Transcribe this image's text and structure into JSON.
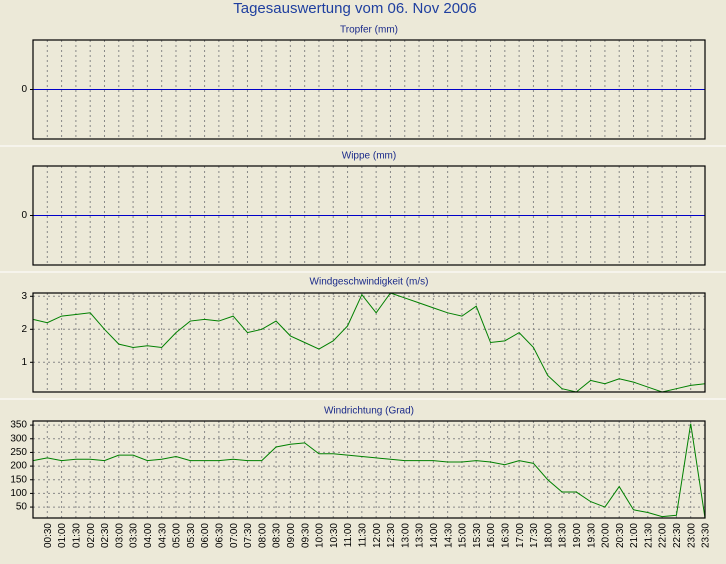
{
  "title": "Tagesauswertung vom 06. Nov 2006",
  "chart_data": [
    {
      "type": "line",
      "title": "Tropfer (mm)",
      "color": "#0000c8",
      "grid": true,
      "ylim": [
        -1,
        1
      ],
      "yticks": [
        0
      ],
      "values": [
        0,
        0,
        0,
        0,
        0,
        0,
        0,
        0,
        0,
        0,
        0,
        0,
        0,
        0,
        0,
        0,
        0,
        0,
        0,
        0,
        0,
        0,
        0,
        0,
        0,
        0,
        0,
        0,
        0,
        0,
        0,
        0,
        0,
        0,
        0,
        0,
        0,
        0,
        0,
        0,
        0,
        0,
        0,
        0,
        0,
        0,
        0,
        0
      ]
    },
    {
      "type": "line",
      "title": "Wippe (mm)",
      "color": "#0000c8",
      "grid": true,
      "ylim": [
        -1,
        1
      ],
      "yticks": [
        0
      ],
      "values": [
        0,
        0,
        0,
        0,
        0,
        0,
        0,
        0,
        0,
        0,
        0,
        0,
        0,
        0,
        0,
        0,
        0,
        0,
        0,
        0,
        0,
        0,
        0,
        0,
        0,
        0,
        0,
        0,
        0,
        0,
        0,
        0,
        0,
        0,
        0,
        0,
        0,
        0,
        0,
        0,
        0,
        0,
        0,
        0,
        0,
        0,
        0,
        0
      ]
    },
    {
      "type": "line",
      "title": "Windgeschwindigkeit (m/s)",
      "color": "#008000",
      "grid": true,
      "ylim": [
        0.1,
        3.1
      ],
      "yticks": [
        1,
        2,
        3
      ],
      "values": [
        2.3,
        2.2,
        2.4,
        2.45,
        2.5,
        2.0,
        1.55,
        1.45,
        1.5,
        1.45,
        1.9,
        2.25,
        2.3,
        2.25,
        2.4,
        1.9,
        2.0,
        2.25,
        1.8,
        1.6,
        1.4,
        1.65,
        2.1,
        3.05,
        2.5,
        3.1,
        2.95,
        2.8,
        2.65,
        2.5,
        2.4,
        2.7,
        1.6,
        1.65,
        1.9,
        1.45,
        0.6,
        0.2,
        0.1,
        0.45,
        0.35,
        0.5,
        0.4,
        0.25,
        0.1,
        0.2,
        0.3,
        0.35
      ]
    },
    {
      "type": "line",
      "title": "Windrichtung (Grad)",
      "color": "#008000",
      "grid": true,
      "ylim": [
        10,
        365
      ],
      "yticks": [
        50,
        100,
        150,
        200,
        250,
        300,
        350
      ],
      "categories": [
        null,
        "00:30",
        "01:00",
        "01:30",
        "02:00",
        "02:30",
        "03:00",
        "03:30",
        "04:00",
        "04:30",
        "05:00",
        "05:30",
        "06:00",
        "06:30",
        "07:00",
        "07:30",
        "08:00",
        "08:30",
        "09:00",
        "09:30",
        "10:00",
        "10:30",
        "11:00",
        "11:30",
        "12:00",
        "12:30",
        "13:00",
        "13:30",
        "14:00",
        "14:30",
        "15:00",
        "15:30",
        "16:00",
        "16:30",
        "17:00",
        "17:30",
        "18:00",
        "18:30",
        "19:00",
        "19:30",
        "20:00",
        "20:30",
        "21:00",
        "21:30",
        "22:00",
        "22:30",
        "23:00",
        "23:30"
      ],
      "values": [
        220,
        230,
        220,
        225,
        225,
        220,
        240,
        240,
        220,
        225,
        235,
        220,
        220,
        220,
        225,
        220,
        220,
        270,
        280,
        285,
        245,
        245,
        240,
        235,
        230,
        225,
        220,
        220,
        220,
        215,
        215,
        220,
        215,
        205,
        220,
        210,
        150,
        105,
        105,
        70,
        50,
        125,
        40,
        30,
        15,
        20,
        355,
        10
      ]
    }
  ]
}
